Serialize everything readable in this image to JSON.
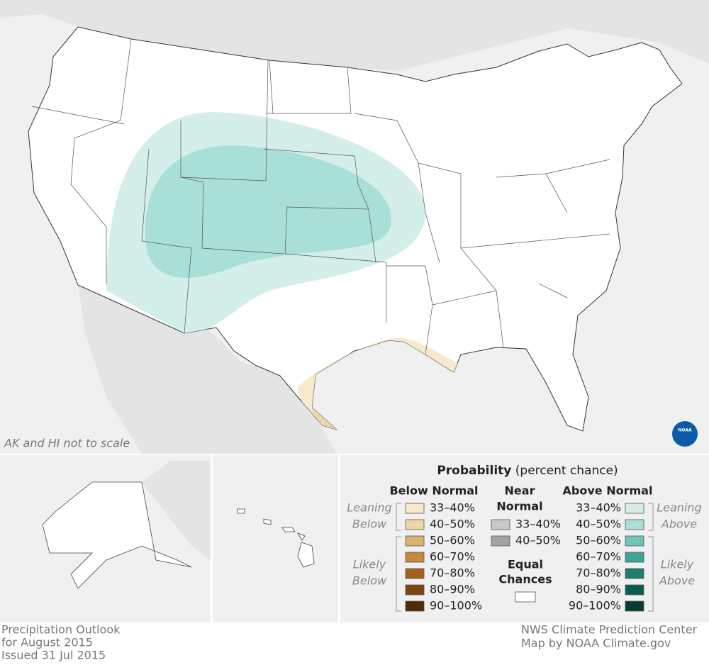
{
  "map": {
    "note": "AK and HI not to scale",
    "logo": "NOAA"
  },
  "legend": {
    "title": "Probability",
    "subtitle": "(percent chance)",
    "below": {
      "heading": "Below Normal",
      "leaning": [
        "Leaning",
        "Below"
      ],
      "likely": [
        "Likely",
        "Below"
      ],
      "items": [
        {
          "label": "33–40%",
          "color": "#f6eacb"
        },
        {
          "label": "40–50%",
          "color": "#ecd7a4"
        },
        {
          "label": "50–60%",
          "color": "#d8b26f"
        },
        {
          "label": "60–70%",
          "color": "#c58a3c"
        },
        {
          "label": "70–80%",
          "color": "#a5621f"
        },
        {
          "label": "80–90%",
          "color": "#7d4511"
        },
        {
          "label": "90–100%",
          "color": "#4d2a08"
        }
      ]
    },
    "near": {
      "heading": [
        "Near",
        "Normal"
      ],
      "items": [
        {
          "label": "33–40%",
          "color": "#c9c9c9"
        },
        {
          "label": "40–50%",
          "color": "#a3a3a3"
        }
      ]
    },
    "equal": {
      "heading": [
        "Equal",
        "Chances"
      ],
      "color": "#ffffff"
    },
    "above": {
      "heading": "Above Normal",
      "leaning": [
        "Leaning",
        "Above"
      ],
      "likely": [
        "Likely",
        "Above"
      ],
      "items": [
        {
          "label": "33–40%",
          "color": "#d4eeea"
        },
        {
          "label": "40–50%",
          "color": "#a8dfd6"
        },
        {
          "label": "50–60%",
          "color": "#6fc5b9"
        },
        {
          "label": "60–70%",
          "color": "#3fa396"
        },
        {
          "label": "70–80%",
          "color": "#1f7d70"
        },
        {
          "label": "80–90%",
          "color": "#0b5d50"
        },
        {
          "label": "90–100%",
          "color": "#053d34"
        }
      ]
    }
  },
  "footer": {
    "left": [
      "Precipitation Outlook",
      "for August 2015",
      "Issued 31 Jul 2015"
    ],
    "right": [
      "NWS Climate Prediction Center",
      "Map by NOAA Climate.gov"
    ]
  }
}
